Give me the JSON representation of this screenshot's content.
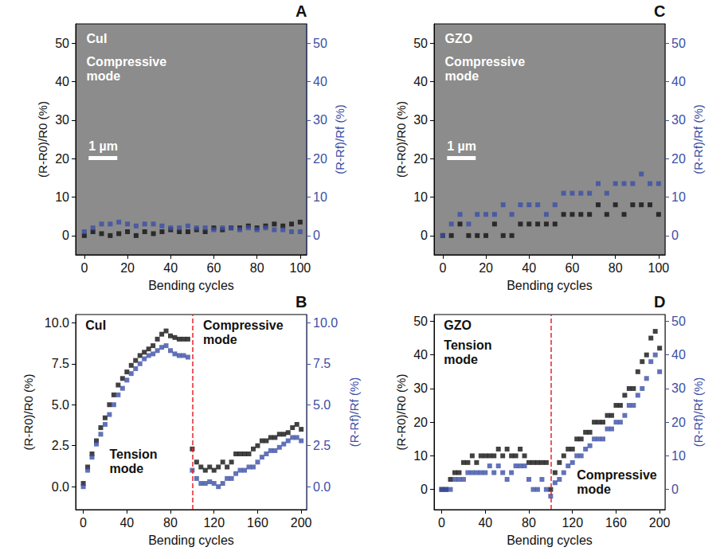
{
  "chart_data": [
    {
      "type": "scatter",
      "panel_label": "A",
      "xlabel": "Bending cycles",
      "ylabel": "(R-R0)/R0 (%)",
      "y2label": "(R-Rf)/Rf (%)",
      "grid": false,
      "xlim": [
        -4,
        103
      ],
      "xticks": [
        0,
        20,
        40,
        60,
        80,
        100
      ],
      "ylim": [
        -5,
        55
      ],
      "yticks": [
        0,
        10,
        20,
        30,
        40,
        50
      ],
      "y2lim": [
        -5,
        55
      ],
      "y2ticks": [
        0,
        10,
        20,
        30,
        40,
        50
      ],
      "x": [
        0,
        4,
        8,
        12,
        16,
        20,
        24,
        28,
        32,
        36,
        40,
        44,
        48,
        52,
        56,
        60,
        64,
        68,
        72,
        76,
        80,
        84,
        88,
        92,
        96,
        100
      ],
      "series": [
        {
          "color": "#111111",
          "marker": "square",
          "values": [
            0,
            1,
            0.5,
            0,
            0.5,
            1,
            0,
            1,
            0.5,
            1,
            1.5,
            1,
            1,
            1.5,
            1,
            2,
            1.5,
            2,
            2,
            2.5,
            2,
            2.5,
            3,
            2.5,
            3,
            3.5
          ]
        },
        {
          "color": "#3b4fa6",
          "marker": "square",
          "axis": "y2",
          "values": [
            1,
            2,
            3,
            3,
            3.5,
            3,
            2.5,
            3,
            3,
            2.5,
            2,
            2,
            2.5,
            2,
            2,
            1.5,
            2,
            2,
            1.5,
            2,
            1.5,
            2,
            1.5,
            1.5,
            1,
            1
          ]
        }
      ],
      "annotations": [
        {
          "text": "CuI",
          "x": 1,
          "y": 53
        },
        {
          "text": "Compressive mode",
          "x": 1,
          "y": 47
        }
      ],
      "scale_bar": {
        "text": "1 µm",
        "x": 2,
        "y": 25
      }
    },
    {
      "type": "scatter",
      "panel_label": "B",
      "xlabel": "Bending cycles",
      "ylabel": "(R-R0)/R0 (%)",
      "y2label": "(R-Rf)/Rf (%)",
      "grid": false,
      "xlim": [
        -7,
        205
      ],
      "xticks": [
        0,
        40,
        80,
        120,
        160,
        200
      ],
      "ylim": [
        -1.4,
        10.5
      ],
      "yticks": [
        {
          "value": 0,
          "label": "0.0"
        },
        {
          "value": 2.5,
          "label": "2.5"
        },
        {
          "value": 5,
          "label": "5.0"
        },
        {
          "value": 7.5,
          "label": "7.5"
        },
        {
          "value": 10,
          "label": "10.0"
        }
      ],
      "y2lim": [
        -1.4,
        10.5
      ],
      "y2ticks": [
        {
          "value": 0,
          "label": "0.0"
        },
        {
          "value": 2.5,
          "label": "2.5"
        },
        {
          "value": 5,
          "label": "5.0"
        },
        {
          "value": 7.5,
          "label": "7.5"
        },
        {
          "value": 10,
          "label": "10.0"
        }
      ],
      "x": [
        0,
        4,
        8,
        12,
        16,
        20,
        24,
        28,
        32,
        36,
        40,
        44,
        48,
        52,
        56,
        60,
        64,
        68,
        72,
        76,
        80,
        84,
        88,
        92,
        96,
        100,
        104,
        108,
        112,
        116,
        120,
        124,
        128,
        132,
        136,
        140,
        144,
        148,
        152,
        156,
        160,
        164,
        168,
        172,
        176,
        180,
        184,
        188,
        192,
        196,
        200
      ],
      "series": [
        {
          "color": "#111111",
          "marker": "square",
          "values": [
            0.2,
            1.2,
            2,
            2.8,
            3.6,
            4.2,
            5,
            5.6,
            6.2,
            6.6,
            7,
            7.4,
            7.7,
            8,
            8.2,
            8.4,
            8.6,
            9,
            9.3,
            9.5,
            9.2,
            9.1,
            9,
            9,
            9,
            2.3,
            1.5,
            1.2,
            1,
            1.2,
            1,
            1.2,
            1.5,
            1.2,
            1.5,
            2,
            2,
            2,
            2,
            2.3,
            2.5,
            2.8,
            2.8,
            3,
            3,
            3.2,
            3.2,
            3.3,
            3.6,
            3.8,
            3.5
          ]
        },
        {
          "color": "#3b4fa6",
          "marker": "square",
          "axis": "y2",
          "values": [
            0,
            1,
            1.8,
            2.6,
            3.2,
            3.8,
            4.4,
            5,
            5.6,
            6,
            6.5,
            6.9,
            7.2,
            7.5,
            7.8,
            8,
            8.1,
            8.3,
            8.5,
            8.6,
            8.3,
            8.1,
            8,
            8,
            7.9,
            1,
            0.5,
            0.2,
            0.2,
            0.3,
            0.2,
            0,
            0.2,
            0.5,
            0.5,
            0.8,
            1,
            1,
            1.2,
            1.2,
            1.5,
            1.8,
            2,
            2.2,
            2.2,
            2.4,
            2.6,
            2.8,
            3,
            3,
            2.8
          ]
        }
      ],
      "vline": 100,
      "annotations": [
        {
          "text": "CuI",
          "x": 2,
          "y": 10.3
        },
        {
          "text": "Tension mode",
          "x": 24,
          "y": 2.4
        },
        {
          "text": "Compressive mode",
          "x": 110,
          "y": 10.3
        }
      ]
    },
    {
      "type": "scatter",
      "panel_label": "C",
      "xlabel": "Bending cycles",
      "ylabel": "(R-R0)/R0 (%)",
      "y2label": "(R-Rf)/Rf (%)",
      "grid": false,
      "xlim": [
        -4,
        103
      ],
      "xticks": [
        0,
        20,
        40,
        60,
        80,
        100
      ],
      "ylim": [
        -5,
        55
      ],
      "yticks": [
        0,
        10,
        20,
        30,
        40,
        50
      ],
      "y2lim": [
        -5,
        55
      ],
      "y2ticks": [
        0,
        10,
        20,
        30,
        40,
        50
      ],
      "x": [
        0,
        4,
        8,
        12,
        16,
        20,
        24,
        28,
        32,
        36,
        40,
        44,
        48,
        52,
        56,
        60,
        64,
        68,
        72,
        76,
        80,
        84,
        88,
        92,
        96,
        100
      ],
      "series": [
        {
          "color": "#111111",
          "marker": "square",
          "values": [
            0,
            0,
            3,
            0,
            0,
            0,
            3,
            0,
            0,
            3,
            3,
            3,
            3,
            3,
            5.5,
            5.5,
            5.5,
            5.5,
            8,
            5.5,
            8,
            5.5,
            8,
            8,
            8,
            5.5
          ]
        },
        {
          "color": "#3b4fa6",
          "marker": "square",
          "axis": "y2",
          "values": [
            0,
            3,
            5.5,
            3,
            5.5,
            5.5,
            5.5,
            8,
            5.5,
            8,
            8,
            8,
            5.5,
            8,
            11,
            11,
            11,
            11,
            13.5,
            11,
            13.5,
            13.5,
            13.5,
            16,
            13.5,
            13.5
          ]
        }
      ],
      "annotations": [
        {
          "text": "GZO",
          "x": 1,
          "y": 53
        },
        {
          "text": "Compressive mode",
          "x": 1,
          "y": 47
        }
      ],
      "scale_bar": {
        "text": "1 µm",
        "x": 2,
        "y": 25
      }
    },
    {
      "type": "scatter",
      "panel_label": "D",
      "xlabel": "Bending cycles",
      "ylabel": "(R-R0)/R0 (%)",
      "y2label": "(R-Rf)/Rf (%)",
      "grid": false,
      "xlim": [
        -7,
        205
      ],
      "xticks": [
        0,
        40,
        80,
        120,
        160,
        200
      ],
      "ylim": [
        -6,
        52
      ],
      "yticks": [
        0,
        10,
        20,
        30,
        40,
        50
      ],
      "y2lim": [
        -6,
        52
      ],
      "y2ticks": [
        0,
        10,
        20,
        30,
        40,
        50
      ],
      "x": [
        0,
        4,
        8,
        12,
        16,
        20,
        24,
        28,
        32,
        36,
        40,
        44,
        48,
        52,
        56,
        60,
        64,
        68,
        72,
        76,
        80,
        84,
        88,
        92,
        96,
        100,
        104,
        108,
        112,
        116,
        120,
        124,
        128,
        132,
        136,
        140,
        144,
        148,
        152,
        156,
        160,
        164,
        168,
        172,
        176,
        180,
        184,
        188,
        192,
        196,
        200
      ],
      "series": [
        {
          "color": "#111111",
          "marker": "square",
          "values": [
            0,
            0,
            3,
            5,
            5,
            8,
            8,
            10,
            8,
            10,
            10,
            10,
            10,
            12,
            10,
            12,
            10,
            10,
            12,
            10,
            8,
            8,
            8,
            8,
            8,
            0,
            5,
            8,
            10,
            12,
            12,
            15,
            15,
            17,
            17,
            20,
            20,
            20,
            22,
            22,
            25,
            25,
            28,
            30,
            30,
            35,
            38,
            40,
            45,
            47,
            42
          ]
        },
        {
          "color": "#3b4fa6",
          "marker": "square",
          "axis": "y2",
          "values": [
            0,
            0,
            0,
            3,
            3,
            3,
            5,
            5,
            5,
            5,
            5,
            7,
            5,
            7,
            5,
            3,
            5,
            7,
            7,
            7,
            3,
            0,
            0,
            3,
            0,
            -2,
            2,
            3,
            5,
            7,
            8,
            10,
            10,
            12,
            13,
            15,
            15,
            15,
            18,
            18,
            20,
            20,
            22,
            25,
            25,
            28,
            30,
            33,
            38,
            40,
            35
          ]
        }
      ],
      "vline": 100,
      "annotations": [
        {
          "text": "GZO",
          "x": 2,
          "y": 51
        },
        {
          "text": "Tension mode",
          "x": 2,
          "y": 45
        },
        {
          "text": "Compressive mode",
          "x": 124,
          "y": 6.5
        }
      ]
    }
  ]
}
